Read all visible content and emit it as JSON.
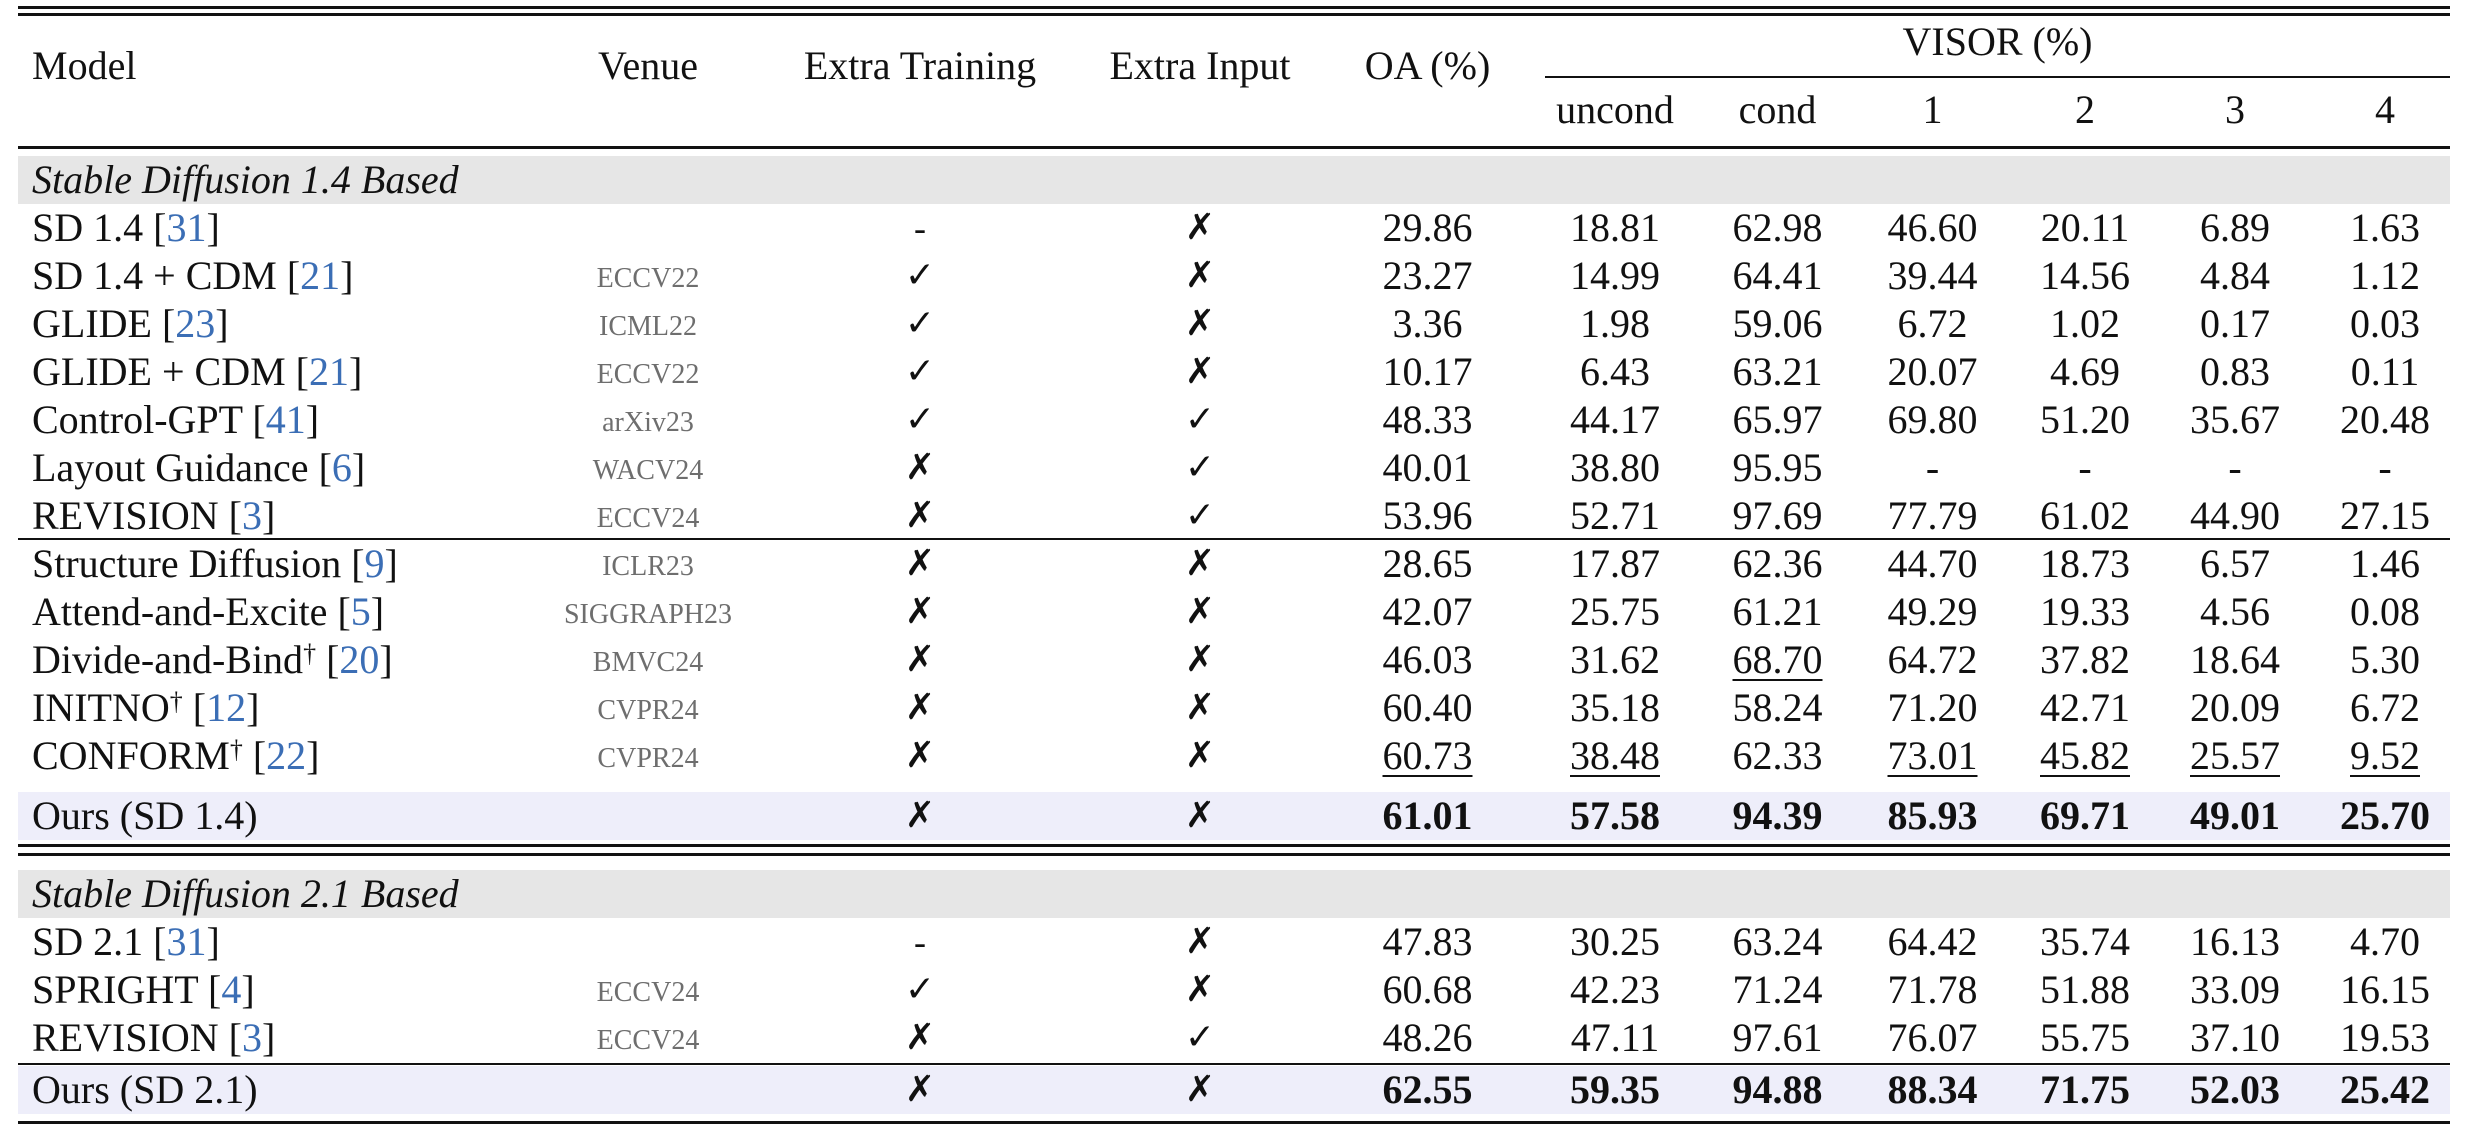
{
  "header": {
    "model": "Model",
    "venue": "Venue",
    "extra_training": "Extra Training",
    "extra_input": "Extra Input",
    "oa": "OA (%)",
    "visor": "VISOR (%)",
    "uncond": "uncond",
    "cond": "cond",
    "v1": "1",
    "v2": "2",
    "v3": "3",
    "v4": "4"
  },
  "section1": {
    "title": "Stable Diffusion 1.4 Based",
    "rows": [
      {
        "name": "SD 1.4 ",
        "ref": "31",
        "dag": "",
        "ref_suffix": "",
        "venue": "",
        "train": "-",
        "input": "✗",
        "oa": "29.86",
        "uncond": "18.81",
        "cond": "62.98",
        "v1": "46.60",
        "v2": "20.11",
        "v3": "6.89",
        "v4": "1.63"
      },
      {
        "name": "SD 1.4 + CDM ",
        "ref": "21",
        "venue": "ECCV22",
        "train": "✓",
        "input": "✗",
        "oa": "23.27",
        "uncond": "14.99",
        "cond": "64.41",
        "v1": "39.44",
        "v2": "14.56",
        "v3": "4.84",
        "v4": "1.12"
      },
      {
        "name": "GLIDE ",
        "ref": "23",
        "venue": "ICML22",
        "train": "✓",
        "input": "✗",
        "oa": "3.36",
        "uncond": "1.98",
        "cond": "59.06",
        "v1": "6.72",
        "v2": "1.02",
        "v3": "0.17",
        "v4": "0.03"
      },
      {
        "name": "GLIDE + CDM ",
        "ref": "21",
        "venue": "ECCV22",
        "train": "✓",
        "input": "✗",
        "oa": "10.17",
        "uncond": "6.43",
        "cond": "63.21",
        "v1": "20.07",
        "v2": "4.69",
        "v3": "0.83",
        "v4": "0.11"
      },
      {
        "name": "Control-GPT ",
        "ref": "41",
        "venue": "arXiv23",
        "train": "✓",
        "input": "✓",
        "oa": "48.33",
        "uncond": "44.17",
        "cond": "65.97",
        "v1": "69.80",
        "v2": "51.20",
        "v3": "35.67",
        "v4": "20.48"
      },
      {
        "name": "Layout Guidance ",
        "ref": "6",
        "venue": "WACV24",
        "train": "✗",
        "input": "✓",
        "oa": "40.01",
        "uncond": "38.80",
        "cond": "95.95",
        "v1": "-",
        "v2": "-",
        "v3": "-",
        "v4": "-"
      },
      {
        "name": "REVISION ",
        "ref": "3",
        "venue": "ECCV24",
        "train": "✗",
        "input": "✓",
        "oa": "53.96",
        "uncond": "52.71",
        "cond": "97.69",
        "v1": "77.79",
        "v2": "61.02",
        "v3": "44.90",
        "v4": "27.15"
      }
    ],
    "rows_b": [
      {
        "name": "Structure Diffusion ",
        "ref": "9",
        "venue": "ICLR23",
        "train": "✗",
        "input": "✗",
        "oa": "28.65",
        "uncond": "17.87",
        "cond": "62.36",
        "v1": "44.70",
        "v2": "18.73",
        "v3": "6.57",
        "v4": "1.46"
      },
      {
        "name": "Attend-and-Excite ",
        "ref": "5",
        "venue": "SIGGRAPH23",
        "train": "✗",
        "input": "✗",
        "oa": "42.07",
        "uncond": "25.75",
        "cond": "61.21",
        "v1": "49.29",
        "v2": "19.33",
        "v3": "4.56",
        "v4": "0.08"
      },
      {
        "name": "Divide-and-Bind",
        "dag": "†",
        "ref": "20",
        "venue": "BMVC24",
        "train": "✗",
        "input": "✗",
        "oa": "46.03",
        "uncond": "31.62",
        "cond": "68.70",
        "v1": "64.72",
        "v2": "37.82",
        "v3": "18.64",
        "v4": "5.30"
      },
      {
        "name": "INITNO",
        "dag": "†",
        "ref": "12",
        "venue": "CVPR24",
        "train": "✗",
        "input": "✗",
        "oa": "60.40",
        "uncond": "35.18",
        "cond": "58.24",
        "v1": "71.20",
        "v2": "42.71",
        "v3": "20.09",
        "v4": "6.72"
      },
      {
        "name": "CONFORM",
        "dag": "†",
        "ref": "22",
        "venue": "CVPR24",
        "train": "✗",
        "input": "✗",
        "oa": "60.73",
        "uncond": "38.48",
        "cond": "62.33",
        "v1": "73.01",
        "v2": "45.82",
        "v3": "25.57",
        "v4": "9.52"
      }
    ],
    "ours": {
      "name": "Ours (SD 1.4)",
      "train": "✗",
      "input": "✗",
      "oa": "61.01",
      "uncond": "57.58",
      "cond": "94.39",
      "v1": "85.93",
      "v2": "69.71",
      "v3": "49.01",
      "v4": "25.70"
    }
  },
  "section2": {
    "title": "Stable Diffusion 2.1 Based",
    "rows": [
      {
        "name": "SD 2.1 ",
        "ref": "31",
        "venue": "",
        "train": "-",
        "input": "✗",
        "oa": "47.83",
        "uncond": "30.25",
        "cond": "63.24",
        "v1": "64.42",
        "v2": "35.74",
        "v3": "16.13",
        "v4": "4.70"
      },
      {
        "name": "SPRIGHT ",
        "ref": "4",
        "venue": "ECCV24",
        "train": "✓",
        "input": "✗",
        "oa": "60.68",
        "uncond": "42.23",
        "cond": "71.24",
        "v1": "71.78",
        "v2": "51.88",
        "v3": "33.09",
        "v4": "16.15"
      },
      {
        "name": "REVISION ",
        "ref": "3",
        "venue": "ECCV24",
        "train": "✗",
        "input": "✓",
        "oa": "48.26",
        "uncond": "47.11",
        "cond": "97.61",
        "v1": "76.07",
        "v2": "55.75",
        "v3": "37.10",
        "v4": "19.53"
      }
    ],
    "ours": {
      "name": "Ours (SD 2.1)",
      "train": "✗",
      "input": "✗",
      "oa": "62.55",
      "uncond": "59.35",
      "cond": "94.88",
      "v1": "88.34",
      "v2": "71.75",
      "v3": "52.03",
      "v4": "25.42"
    }
  }
}
